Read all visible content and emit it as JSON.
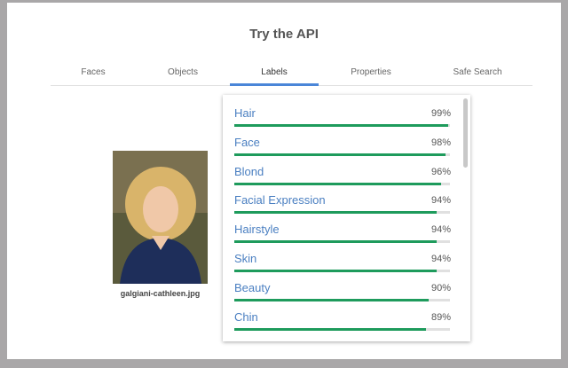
{
  "header": {
    "title": "Try the API"
  },
  "tabs": {
    "items": [
      "Faces",
      "Objects",
      "Labels",
      "Properties",
      "Safe Search"
    ],
    "active": 2
  },
  "image": {
    "caption": "galgiani-cathleen.jpg"
  },
  "labels": [
    {
      "name": "Hair",
      "score": 99,
      "score_label": "99%"
    },
    {
      "name": "Face",
      "score": 98,
      "score_label": "98%"
    },
    {
      "name": "Blond",
      "score": 96,
      "score_label": "96%"
    },
    {
      "name": "Facial Expression",
      "score": 94,
      "score_label": "94%"
    },
    {
      "name": "Hairstyle",
      "score": 94,
      "score_label": "94%"
    },
    {
      "name": "Skin",
      "score": 94,
      "score_label": "94%"
    },
    {
      "name": "Beauty",
      "score": 90,
      "score_label": "90%"
    },
    {
      "name": "Chin",
      "score": 89,
      "score_label": "89%"
    }
  ]
}
